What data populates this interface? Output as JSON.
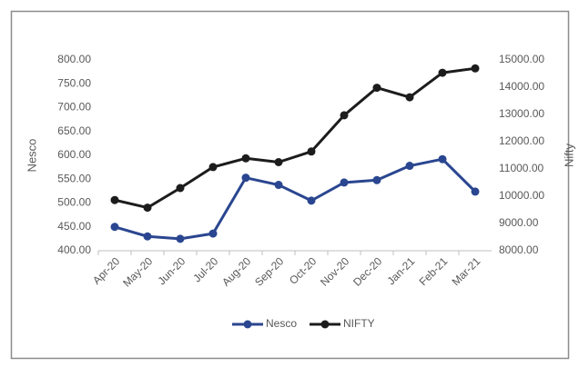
{
  "chart_data": {
    "type": "line",
    "categories": [
      "Apr-20",
      "May-20",
      "Jun-20",
      "Jul-20",
      "Aug-20",
      "Sep-20",
      "Oct-20",
      "Nov-20",
      "Dec-20",
      "Jan-21",
      "Feb-21",
      "Mar-21"
    ],
    "series": [
      {
        "name": "Nesco",
        "color": "#2a4690",
        "axis": "y",
        "values": [
          450,
          430,
          425,
          436,
          553,
          538,
          505,
          543,
          548,
          578,
          592,
          524
        ]
      },
      {
        "name": "NIFTY",
        "color": "#1c1c1c",
        "axis": "y2",
        "values": [
          9860,
          9580,
          10300,
          11070,
          11390,
          11250,
          11640,
          12970,
          13980,
          13630,
          14530,
          14690
        ]
      }
    ],
    "ylabel": "Nesco",
    "y2label": "Nifty",
    "ylim": [
      400,
      800
    ],
    "yticks": [
      {
        "value": 400,
        "label": "400.00"
      },
      {
        "value": 450,
        "label": "450.00"
      },
      {
        "value": 500,
        "label": "500.00"
      },
      {
        "value": 550,
        "label": "550.00"
      },
      {
        "value": 600,
        "label": "600.00"
      },
      {
        "value": 650,
        "label": "650.00"
      },
      {
        "value": 700,
        "label": "700.00"
      },
      {
        "value": 750,
        "label": "750.00"
      },
      {
        "value": 800,
        "label": "800.00"
      }
    ],
    "y2lim": [
      8000,
      15000
    ],
    "y2ticks": [
      {
        "value": 8000,
        "label": "8000.00"
      },
      {
        "value": 9000,
        "label": "9000.00"
      },
      {
        "value": 10000,
        "label": "10000.00"
      },
      {
        "value": 11000,
        "label": "11000.00"
      },
      {
        "value": 12000,
        "label": "12000.00"
      },
      {
        "value": 13000,
        "label": "13000.00"
      },
      {
        "value": 14000,
        "label": "14000.00"
      },
      {
        "value": 15000,
        "label": "15000.00"
      }
    ],
    "grid": false,
    "legend": "bottom"
  }
}
